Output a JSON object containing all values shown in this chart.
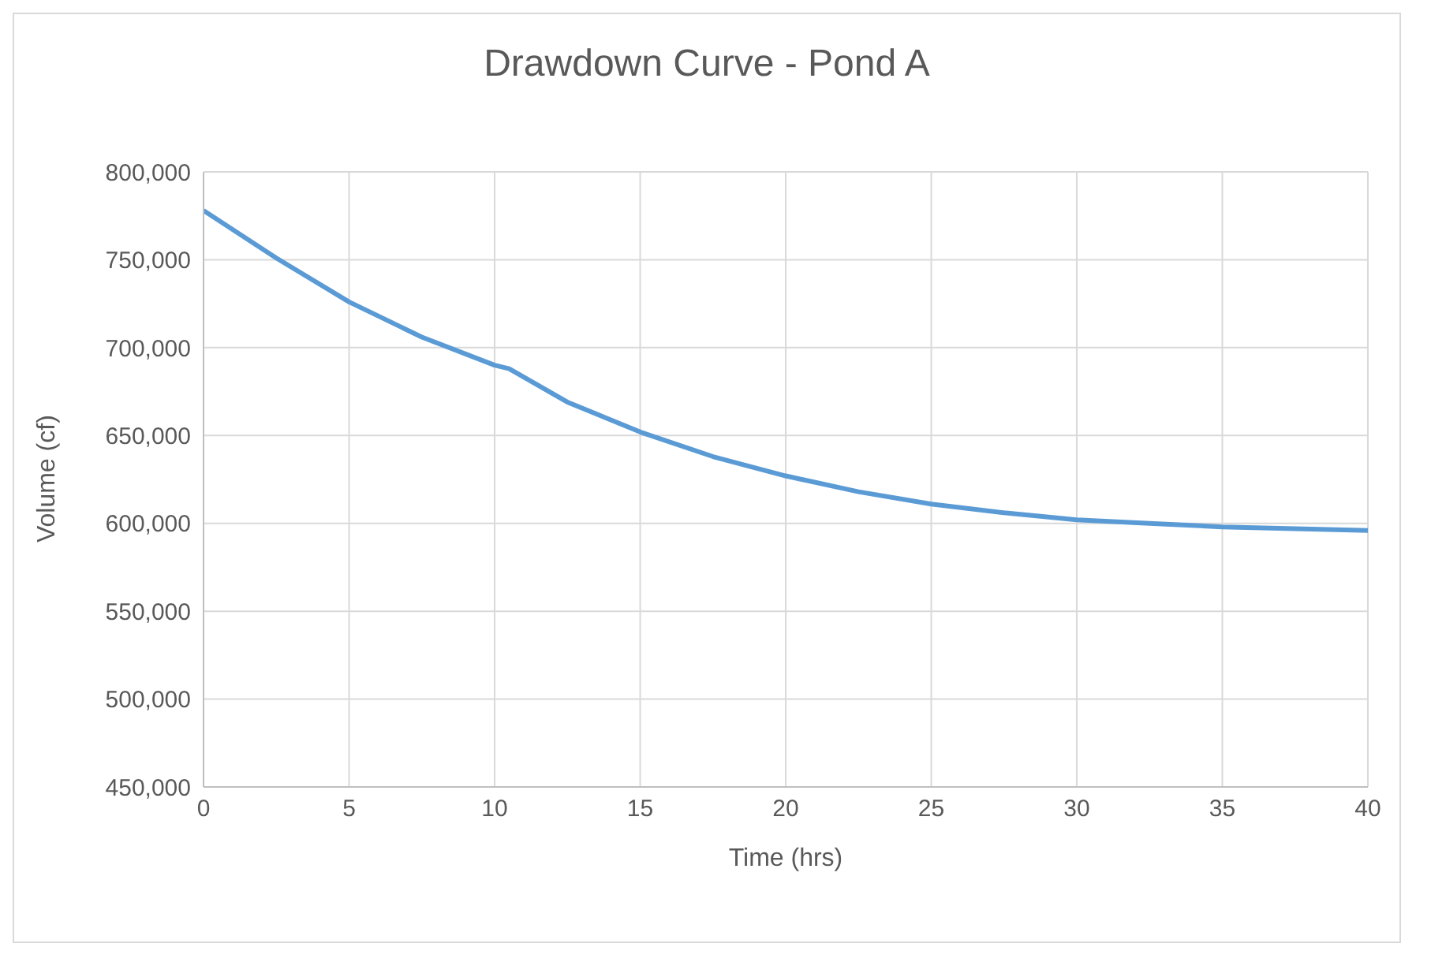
{
  "chart_data": {
    "type": "line",
    "title": "Drawdown Curve - Pond A",
    "xlabel": "Time (hrs)",
    "ylabel": "Volume (cf)",
    "x": [
      0,
      2.5,
      5,
      7.5,
      10,
      10.5,
      12.5,
      15,
      17.5,
      20,
      22.5,
      25,
      27.5,
      30,
      32.5,
      35,
      37.5,
      40
    ],
    "series": [
      {
        "color": "#5b9bd5",
        "values": [
          778000,
          751000,
          726000,
          706000,
          690000,
          688000,
          669000,
          652000,
          638000,
          627000,
          618000,
          611000,
          606000,
          602000,
          600000,
          598000,
          597000,
          596000
        ]
      }
    ],
    "xlim": [
      0,
      40
    ],
    "xticks": [
      0,
      5,
      10,
      15,
      20,
      25,
      30,
      35,
      40
    ],
    "ylim": [
      450000,
      800000
    ],
    "yticks": [
      {
        "value": 450000,
        "label": "450,000"
      },
      {
        "value": 500000,
        "label": "500,000"
      },
      {
        "value": 550000,
        "label": "550,000"
      },
      {
        "value": 600000,
        "label": "600,000"
      },
      {
        "value": 650000,
        "label": "650,000"
      },
      {
        "value": 700000,
        "label": "700,000"
      },
      {
        "value": 750000,
        "label": "750,000"
      },
      {
        "value": 800000,
        "label": "800,000"
      }
    ],
    "grid": true,
    "marker": "none",
    "line_style": "solid",
    "legend": false
  }
}
